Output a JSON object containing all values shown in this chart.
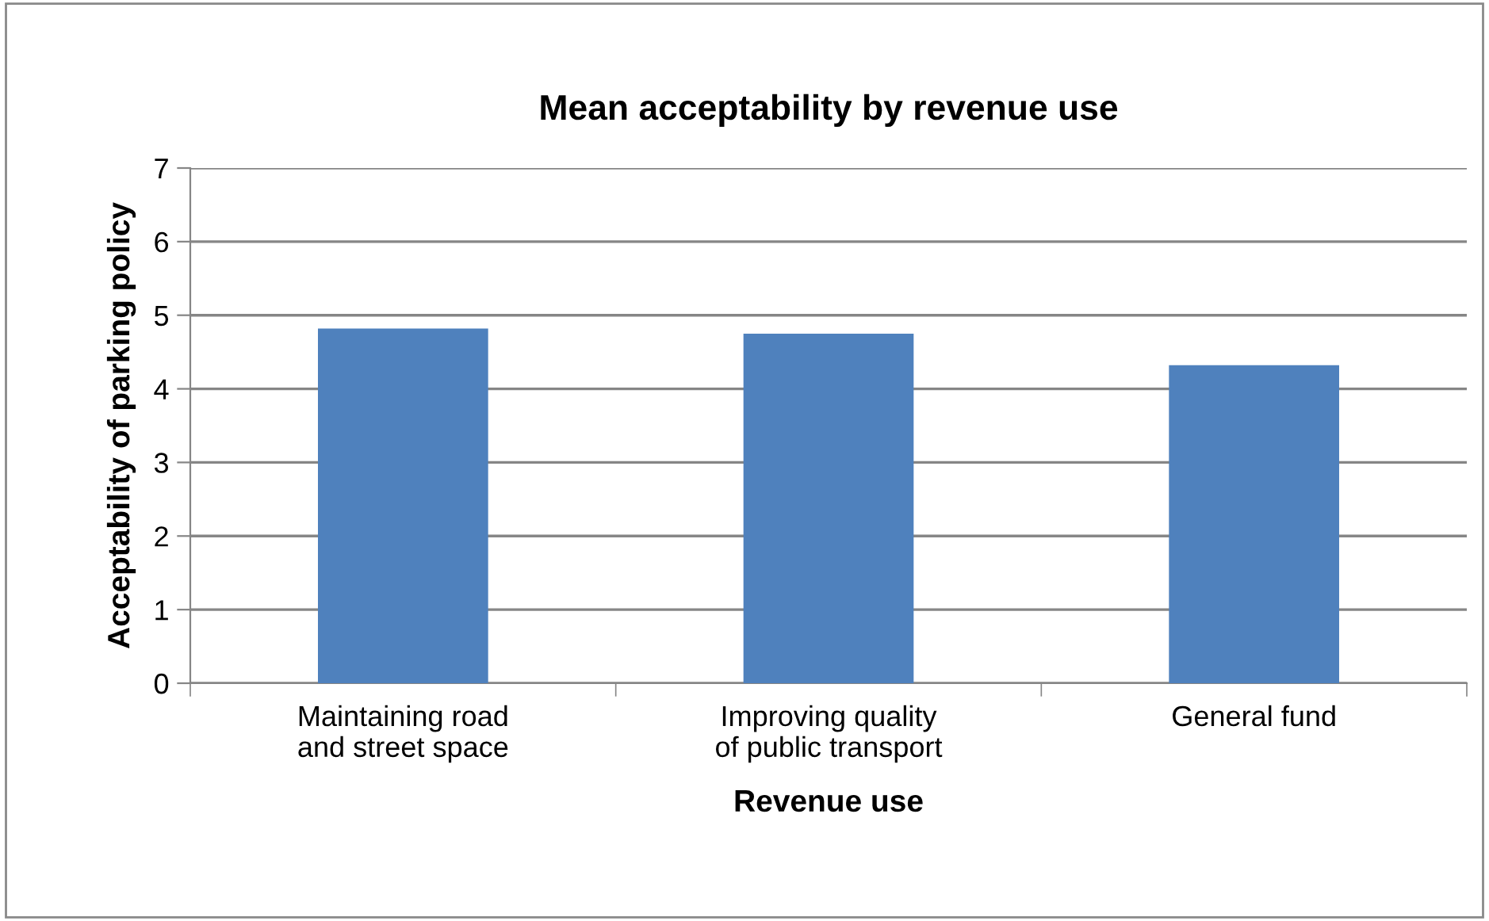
{
  "chart_data": {
    "type": "bar",
    "title": "Mean acceptability by revenue use",
    "xlabel": "Revenue use",
    "ylabel": "Acceptability of parking policy",
    "categories": [
      "Maintaining road and street space",
      "Improving quality of public transport",
      "General fund"
    ],
    "values": [
      4.82,
      4.75,
      4.32
    ],
    "color": "#4f81bd",
    "ylim": [
      0,
      7
    ],
    "yticks": [
      0,
      1,
      2,
      3,
      4,
      5,
      6,
      7
    ],
    "grid": "y",
    "legend": false
  }
}
